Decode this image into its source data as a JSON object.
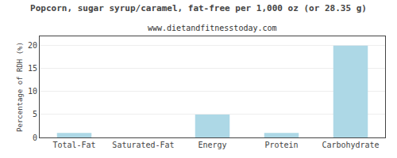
{
  "chart_data": {
    "type": "bar",
    "title": "Popcorn, sugar syrup/caramel, fat-free per 1,000 oz (or 28.35 g)",
    "subtitle": "www.dietandfitnesstoday.com",
    "categories": [
      "Total-Fat",
      "Saturated-Fat",
      "Energy",
      "Protein",
      "Carbohydrate"
    ],
    "values": [
      1.0,
      0.0,
      5.0,
      1.0,
      20.0
    ],
    "color": "#add8e6",
    "ylabel": "Percentage of RDH (%)",
    "ylim": [
      0,
      22
    ],
    "yticks": [
      0,
      5,
      10,
      15,
      20
    ],
    "grid": true
  }
}
